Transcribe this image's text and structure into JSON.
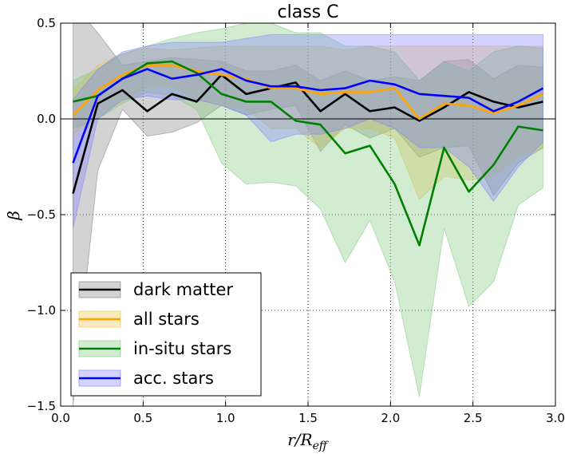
{
  "chart_data": {
    "type": "line",
    "title": "class C",
    "xlabel": "r/R",
    "xlabel_sub": "eff",
    "ylabel": "β",
    "xlim": [
      0.0,
      3.0
    ],
    "ylim": [
      -1.5,
      0.5
    ],
    "xticks": [
      0.0,
      0.5,
      1.0,
      1.5,
      2.0,
      2.5,
      3.0
    ],
    "xtick_labels": [
      "0.0",
      "0.5",
      "1.0",
      "1.5",
      "2.0",
      "2.5",
      "3.0"
    ],
    "yticks": [
      -1.5,
      -1.0,
      -0.5,
      0.0,
      0.5
    ],
    "ytick_labels": [
      "−1.5",
      "−1.0",
      "−0.5",
      "0.0",
      "0.5"
    ],
    "grid": true,
    "legend_position": "lower-left",
    "x": [
      0.075,
      0.225,
      0.375,
      0.525,
      0.675,
      0.825,
      0.975,
      1.125,
      1.275,
      1.425,
      1.575,
      1.725,
      1.875,
      2.025,
      2.175,
      2.325,
      2.475,
      2.625,
      2.775,
      2.925
    ],
    "series": [
      {
        "name": "dark matter",
        "line_color": "#000000",
        "band_color": "#808080",
        "values": [
          -0.39,
          0.08,
          0.15,
          0.04,
          0.13,
          0.09,
          0.23,
          0.13,
          0.16,
          0.19,
          0.04,
          0.13,
          0.04,
          0.06,
          -0.01,
          0.06,
          0.14,
          0.09,
          0.06,
          0.09
        ],
        "upper": [
          0.6,
          0.45,
          0.28,
          0.3,
          0.32,
          0.31,
          0.3,
          0.25,
          0.25,
          0.28,
          0.2,
          0.25,
          0.2,
          0.22,
          0.2,
          0.3,
          0.31,
          0.21,
          0.28,
          0.27
        ],
        "lower": [
          -1.5,
          -0.27,
          0.05,
          -0.09,
          -0.07,
          -0.02,
          0.07,
          0.02,
          0.05,
          0.07,
          -0.17,
          -0.03,
          -0.1,
          -0.05,
          -0.2,
          -0.15,
          -0.14,
          -0.4,
          -0.23,
          -0.15
        ]
      },
      {
        "name": "all stars",
        "line_color": "#FFA500",
        "band_color": "#F0C24A",
        "values": [
          0.02,
          0.15,
          0.23,
          0.28,
          0.28,
          0.25,
          0.23,
          0.21,
          0.16,
          0.16,
          0.13,
          0.14,
          0.14,
          0.16,
          0.0,
          0.08,
          0.07,
          0.03,
          0.07,
          0.13
        ],
        "upper": [
          0.15,
          0.28,
          0.34,
          0.37,
          0.36,
          0.37,
          0.38,
          0.38,
          0.38,
          0.38,
          0.38,
          0.36,
          0.38,
          0.38,
          0.38,
          0.38,
          0.38,
          0.38,
          0.38,
          0.38
        ],
        "lower": [
          -0.08,
          0.02,
          0.09,
          0.17,
          0.17,
          0.1,
          0.07,
          0.05,
          -0.05,
          -0.05,
          -0.15,
          -0.05,
          -0.05,
          -0.1,
          -0.42,
          -0.3,
          -0.32,
          -0.3,
          -0.2,
          -0.15
        ]
      },
      {
        "name": "in-situ stars",
        "line_color": "#008000",
        "band_color": "#7FC97F",
        "values": [
          0.09,
          0.12,
          0.21,
          0.29,
          0.3,
          0.24,
          0.13,
          0.09,
          0.09,
          -0.01,
          -0.03,
          -0.18,
          -0.14,
          -0.34,
          -0.66,
          -0.15,
          -0.38,
          -0.24,
          -0.04,
          -0.06
        ],
        "upper": [
          0.2,
          0.26,
          0.34,
          0.38,
          0.42,
          0.45,
          0.47,
          0.5,
          0.5,
          0.45,
          0.45,
          0.38,
          0.38,
          0.35,
          0.2,
          0.3,
          0.25,
          0.35,
          0.38,
          0.37
        ],
        "lower": [
          -0.05,
          0.0,
          0.08,
          0.14,
          0.12,
          0.05,
          -0.23,
          -0.34,
          -0.33,
          -0.35,
          -0.47,
          -0.75,
          -0.53,
          -0.85,
          -1.45,
          -0.57,
          -0.98,
          -0.85,
          -0.45,
          -0.36
        ]
      },
      {
        "name": "acc. stars",
        "line_color": "#0000FF",
        "band_color": "#8080FF",
        "values": [
          -0.23,
          0.12,
          0.21,
          0.26,
          0.21,
          0.23,
          0.26,
          0.2,
          0.17,
          0.17,
          0.15,
          0.16,
          0.2,
          0.18,
          0.13,
          0.12,
          0.11,
          0.04,
          0.09,
          0.16
        ],
        "upper": [
          0.1,
          0.26,
          0.35,
          0.38,
          0.4,
          0.4,
          0.4,
          0.42,
          0.44,
          0.44,
          0.44,
          0.44,
          0.44,
          0.44,
          0.44,
          0.44,
          0.44,
          0.44,
          0.44,
          0.44
        ],
        "lower": [
          -0.57,
          0.0,
          0.1,
          0.12,
          0.1,
          0.1,
          0.07,
          0.02,
          -0.12,
          -0.08,
          -0.08,
          -0.05,
          0.0,
          -0.05,
          -0.15,
          -0.15,
          -0.25,
          -0.43,
          -0.25,
          -0.12
        ]
      }
    ]
  }
}
